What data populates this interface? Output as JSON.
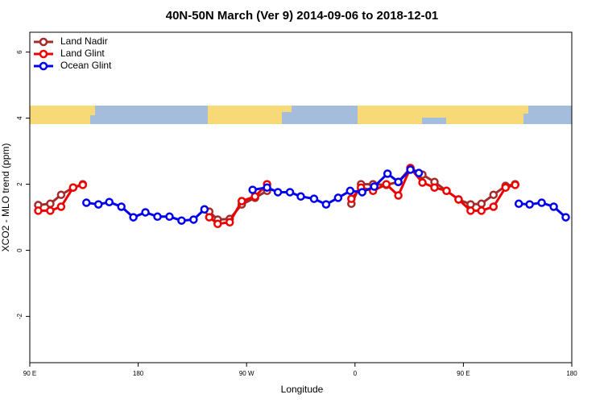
{
  "chart_data": {
    "type": "line",
    "title": "40N-50N March (Ver 9)   2014-09-06 to 2018-12-01",
    "x_label": "Longitude",
    "y_label": "XCO2 - MLO trend (ppm)",
    "xlim": [
      90,
      540
    ],
    "ylim": [
      -3.4,
      6.6
    ],
    "xticks": [
      {
        "value": 90,
        "label": "90 E"
      },
      {
        "value": 180,
        "label": "180"
      },
      {
        "value": 270,
        "label": "90 W"
      },
      {
        "value": 360,
        "label": "0"
      },
      {
        "value": 450,
        "label": "90 E"
      },
      {
        "value": 540,
        "label": "180"
      }
    ],
    "yticks": [
      -2,
      0,
      2,
      4,
      6
    ],
    "legend": "top-left",
    "series": [
      {
        "name": "Land Nadir",
        "color": "#a52a2a",
        "x": [
          97,
          107,
          116,
          126,
          134,
          null,
          239,
          246,
          256,
          266,
          277,
          287,
          null,
          357,
          365,
          375,
          386,
          396,
          406,
          416,
          426,
          436,
          446,
          456,
          465,
          475,
          485,
          493
        ],
        "values": [
          1.37,
          1.41,
          1.68,
          1.9,
          2.0,
          null,
          1.17,
          0.93,
          0.95,
          1.39,
          1.59,
          1.8,
          null,
          1.41,
          2.0,
          2.0,
          1.98,
          2.07,
          2.49,
          2.29,
          2.07,
          1.8,
          1.54,
          1.39,
          1.41,
          1.68,
          1.95,
          2.0
        ]
      },
      {
        "name": "Land Glint",
        "color": "#ee0000",
        "x": [
          97,
          107,
          116,
          126,
          134,
          null,
          239,
          246,
          256,
          266,
          277,
          287,
          null,
          357,
          365,
          375,
          386,
          396,
          406,
          416,
          426,
          436,
          446,
          456,
          465,
          475,
          485,
          493
        ],
        "values": [
          1.2,
          1.2,
          1.32,
          1.9,
          1.98,
          null,
          1.0,
          0.8,
          0.85,
          1.49,
          1.63,
          2.0,
          null,
          1.56,
          1.9,
          1.8,
          2.0,
          1.66,
          2.49,
          2.05,
          1.9,
          1.8,
          1.54,
          1.2,
          1.2,
          1.32,
          1.9,
          1.98
        ]
      },
      {
        "name": "Ocean Glint",
        "color": "#0000ee",
        "x": [
          137,
          147,
          156,
          166,
          176,
          186,
          196,
          206,
          216,
          226,
          235,
          null,
          275,
          287,
          296,
          306,
          315,
          326,
          336,
          346,
          356,
          366,
          376,
          387,
          396,
          406,
          413,
          null,
          496,
          505,
          515,
          525,
          535
        ],
        "values": [
          1.44,
          1.39,
          1.46,
          1.32,
          1.0,
          1.15,
          1.02,
          1.02,
          0.9,
          0.93,
          1.24,
          null,
          1.83,
          1.9,
          1.76,
          1.76,
          1.63,
          1.56,
          1.39,
          1.59,
          1.8,
          1.76,
          1.93,
          2.32,
          2.07,
          2.44,
          2.34,
          null,
          1.41,
          1.39,
          1.44,
          1.32,
          1.0
        ]
      }
    ]
  }
}
